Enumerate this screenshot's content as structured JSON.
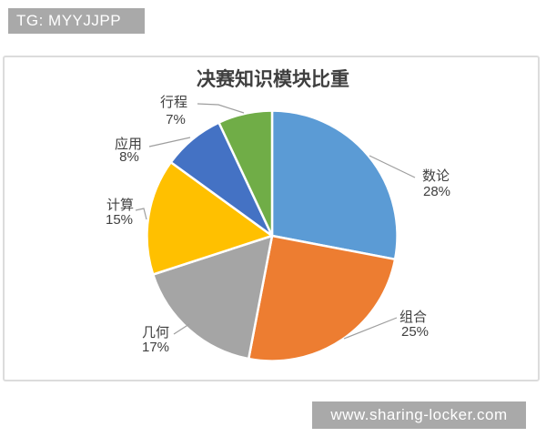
{
  "badges": {
    "tg": "TG: MYYJJPP",
    "site": "www.sharing-locker.com"
  },
  "chart_data": {
    "type": "pie",
    "title": "决赛知识模块比重",
    "start_angle_deg": 0,
    "direction": "clockwise",
    "legend": "none",
    "label_style": "category name and percent outside pie with leader lines",
    "slices": [
      {
        "label": "数论",
        "value": 28,
        "pct_label": "28%",
        "color": "#5B9BD5"
      },
      {
        "label": "组合",
        "value": 25,
        "pct_label": "25%",
        "color": "#ED7D31"
      },
      {
        "label": "几何",
        "value": 17,
        "pct_label": "17%",
        "color": "#A5A5A5"
      },
      {
        "label": "计算",
        "value": 15,
        "pct_label": "15%",
        "color": "#FFC000"
      },
      {
        "label": "应用",
        "value": 8,
        "pct_label": "8%",
        "color": "#4472C4"
      },
      {
        "label": "行程",
        "value": 7,
        "pct_label": "7%",
        "color": "#70AD47"
      }
    ]
  },
  "colors": {
    "background": "#FFFFFF",
    "badge_bg": "#A9A9A9",
    "badge_text": "#FFFFFF",
    "frame_border": "#DCDCDC",
    "title_text": "#3F3F3F",
    "label_text": "#404040",
    "leader_line": "#9E9E9E",
    "slice_border": "#FFFFFF"
  }
}
